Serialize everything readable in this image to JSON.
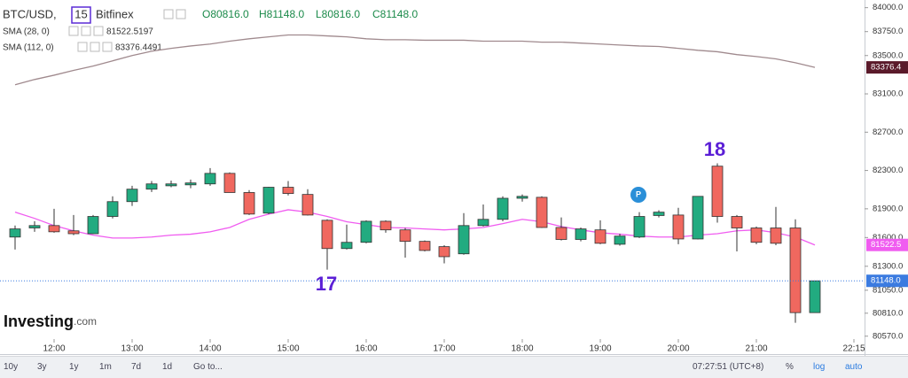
{
  "chart_data": {
    "type": "candlestick",
    "header": {
      "symbol": "BTC/USD,",
      "interval": "15",
      "exchange": "Bitfinex",
      "ohlc": [
        "O80816.0",
        "H81148.0",
        "L80816.0",
        "C81148.0"
      ]
    },
    "categories": [
      null,
      null,
      "12:00",
      null,
      null,
      null,
      "13:00",
      null,
      null,
      null,
      "14:00",
      null,
      null,
      null,
      "15:00",
      null,
      null,
      null,
      "16:00",
      null,
      null,
      null,
      "17:00",
      null,
      null,
      null,
      "18:00",
      null,
      null,
      null,
      "19:00",
      null,
      null,
      null,
      "20:00",
      null,
      null,
      null,
      "21:00",
      null,
      null,
      null,
      null,
      "22:15"
    ],
    "candles": {
      "up_color": "#22ab80",
      "down_color": "#f0685f",
      "axis_badge": "81148.0",
      "badge_color": "#3b7be0",
      "open": [
        81605,
        81700,
        81725,
        81670,
        81640,
        81820,
        81975,
        82105,
        82140,
        82150,
        82160,
        82270,
        82070,
        81855,
        82125,
        82050,
        81780,
        81485,
        81550,
        81770,
        81680,
        81560,
        81505,
        81430,
        81725,
        81790,
        82010,
        82020,
        81705,
        81580,
        81680,
        81530,
        81605,
        81830,
        81835,
        81585,
        82345,
        81820,
        81700,
        81700,
        81700,
        80816,
        null,
        null
      ],
      "high": [
        81725,
        81770,
        81900,
        81835,
        81835,
        82030,
        82140,
        82190,
        82195,
        82205,
        82325,
        82280,
        82095,
        82130,
        82190,
        82105,
        81790,
        81735,
        81780,
        81780,
        81700,
        81570,
        81520,
        81855,
        81945,
        82030,
        82050,
        82030,
        81810,
        81705,
        81780,
        81640,
        81865,
        81885,
        81910,
        82030,
        82375,
        81835,
        81715,
        81920,
        81790,
        81148,
        null,
        null
      ],
      "low": [
        81475,
        81660,
        81650,
        81625,
        81635,
        81800,
        81930,
        82075,
        82125,
        82115,
        82140,
        82070,
        81835,
        81845,
        82040,
        81830,
        81265,
        81475,
        81540,
        81650,
        81390,
        81455,
        81330,
        81420,
        81715,
        81770,
        81975,
        81700,
        81570,
        81560,
        81530,
        81515,
        81595,
        81810,
        81530,
        81580,
        81755,
        81455,
        81530,
        81520,
        80710,
        80816,
        null,
        null
      ],
      "close": [
        81690,
        81725,
        81660,
        81640,
        81820,
        81975,
        82105,
        82160,
        82160,
        82170,
        82270,
        82070,
        81845,
        82125,
        82060,
        81835,
        81485,
        81550,
        81770,
        81680,
        81560,
        81465,
        81400,
        81725,
        81790,
        82010,
        82030,
        81705,
        81580,
        81690,
        81540,
        81615,
        81820,
        81865,
        81585,
        82030,
        81820,
        81700,
        81550,
        81540,
        80816,
        81148,
        null,
        null
      ]
    },
    "series": [
      {
        "name": "SMA (28, 0)",
        "color": "#f05cf0",
        "legend_value": "81522.5197",
        "axis_badge": "81522.5",
        "values": [
          81865,
          81800,
          81725,
          81670,
          81625,
          81595,
          81595,
          81605,
          81625,
          81635,
          81660,
          81705,
          81790,
          81845,
          81890,
          81865,
          81820,
          81765,
          81735,
          81705,
          81700,
          81690,
          81680,
          81690,
          81705,
          81745,
          81790,
          81765,
          81715,
          81680,
          81650,
          81635,
          81615,
          81605,
          81605,
          81625,
          81640,
          81670,
          81680,
          81650,
          81605,
          81522.5197,
          null,
          null
        ]
      },
      {
        "name": "SMA (112, 0)",
        "color": "#a08a8e",
        "legend_value": "83376.4491",
        "axis_badge": "83376.4",
        "badge_color": "#5a1a2a",
        "values": [
          83195,
          83250,
          83295,
          83345,
          83390,
          83445,
          83500,
          83545,
          83575,
          83600,
          83620,
          83650,
          83675,
          83695,
          83715,
          83715,
          83705,
          83695,
          83675,
          83665,
          83665,
          83660,
          83660,
          83660,
          83650,
          83650,
          83650,
          83640,
          83640,
          83630,
          83620,
          83610,
          83600,
          83595,
          83575,
          83555,
          83540,
          83510,
          83490,
          83465,
          83425,
          83376.4491,
          null,
          null
        ]
      }
    ],
    "ylim": [
      80420,
      84080
    ],
    "yticks": [
      {
        "value": 84000,
        "label": "84000.0"
      },
      {
        "value": 83750,
        "label": "83750.0"
      },
      {
        "value": 83500,
        "label": "83500.0"
      },
      {
        "value": 83100,
        "label": "83100.0"
      },
      {
        "value": 82700,
        "label": "82700.0"
      },
      {
        "value": 82300,
        "label": "82300.0"
      },
      {
        "value": 81900,
        "label": "81900.0"
      },
      {
        "value": 81600,
        "label": "81600.0"
      },
      {
        "value": 81300,
        "label": "81300.0"
      },
      {
        "value": 81050,
        "label": "81050.0"
      },
      {
        "value": 80810,
        "label": "80810.0"
      },
      {
        "value": 80570,
        "label": "80570.0"
      }
    ],
    "annotations": [
      "17",
      "18"
    ],
    "marker": "P",
    "watermark": [
      "Investing",
      ".com"
    ],
    "toolbar": {
      "ranges": [
        "10y",
        "3y",
        "1y",
        "1m",
        "7d",
        "1d",
        "Go to..."
      ],
      "clock": "07:27:51 (UTC+8)",
      "options": [
        "%",
        "log",
        "auto"
      ]
    }
  }
}
